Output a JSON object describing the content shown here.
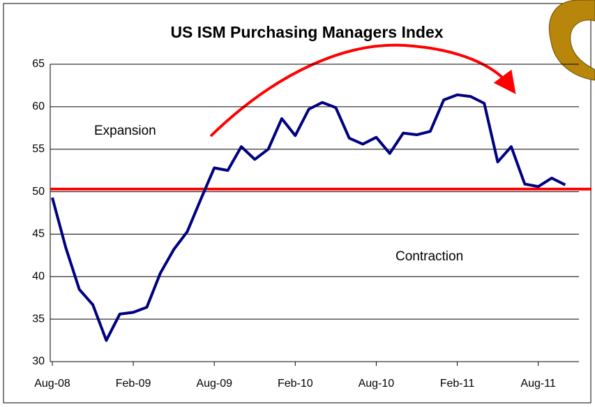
{
  "chart_data": {
    "type": "line",
    "title": "US ISM Purchasing Managers Index",
    "categories": [
      "Aug-08",
      null,
      null,
      null,
      null,
      null,
      "Feb-09",
      null,
      null,
      null,
      null,
      null,
      "Aug-09",
      null,
      null,
      null,
      null,
      null,
      "Feb-10",
      null,
      null,
      null,
      null,
      null,
      "Aug-10",
      null,
      null,
      null,
      null,
      null,
      "Feb-11",
      null,
      null,
      null,
      null,
      null,
      "Aug-11",
      null,
      null
    ],
    "series": [
      {
        "color": "#000080",
        "values": [
          49.3,
          43.4,
          38.5,
          36.7,
          32.5,
          35.6,
          35.8,
          36.4,
          40.4,
          43.2,
          45.3,
          49.1,
          52.8,
          52.5,
          55.3,
          53.8,
          55.0,
          58.6,
          56.6,
          59.7,
          60.5,
          59.9,
          56.3,
          55.6,
          56.4,
          54.5,
          56.9,
          56.7,
          57.1,
          60.8,
          61.4,
          61.2,
          60.4,
          53.5,
          55.3,
          50.9,
          50.6,
          51.6,
          50.8
        ]
      }
    ],
    "reference_line": {
      "value": 50.3,
      "color": "#ff0000"
    },
    "annotations": [
      "Expansion",
      "Contraction"
    ],
    "ylim": [
      30,
      65
    ],
    "yticks": [
      30,
      35,
      40,
      45,
      50,
      55,
      60,
      65
    ],
    "grid": true
  }
}
